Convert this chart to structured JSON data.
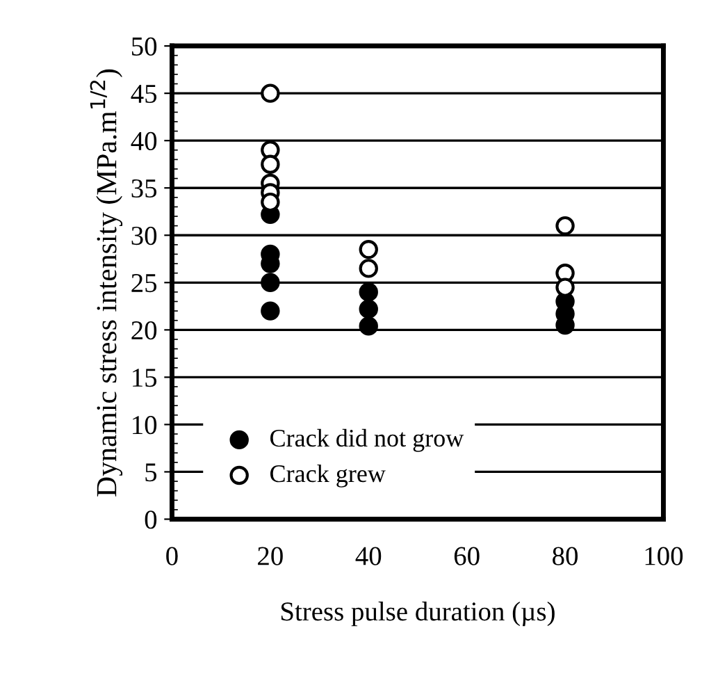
{
  "chart_data": {
    "type": "scatter",
    "xlabel": "Stress pulse duration (µs)",
    "ylabel": "Dynamic stress intensity (MPa.m$^{1/2}$)",
    "series": [
      {
        "name": "Crack did not grow",
        "color": "#000000",
        "x": [
          20,
          20,
          20,
          20,
          20,
          40,
          40,
          40,
          80,
          80,
          80
        ],
        "values": [
          32.2,
          28,
          27,
          25,
          22,
          24,
          22.2,
          20.4,
          23,
          21.7,
          20.5
        ]
      },
      {
        "name": "Crack grew",
        "color": "#ffffff",
        "x": [
          20,
          20,
          20,
          20,
          20,
          20,
          40,
          40,
          80,
          80,
          80
        ],
        "values": [
          45,
          39,
          37.5,
          35.5,
          34.5,
          33.5,
          28.5,
          26.5,
          31,
          26,
          24.5
        ]
      }
    ],
    "xlim": [
      0,
      100
    ],
    "xticks": [
      0,
      20,
      40,
      60,
      80,
      100
    ],
    "ylim": [
      0,
      50
    ],
    "yticks": [
      0,
      5,
      10,
      15,
      20,
      25,
      30,
      35,
      40,
      45,
      50
    ],
    "grid": "y",
    "legend": "bottom left",
    "marker": "circle"
  }
}
